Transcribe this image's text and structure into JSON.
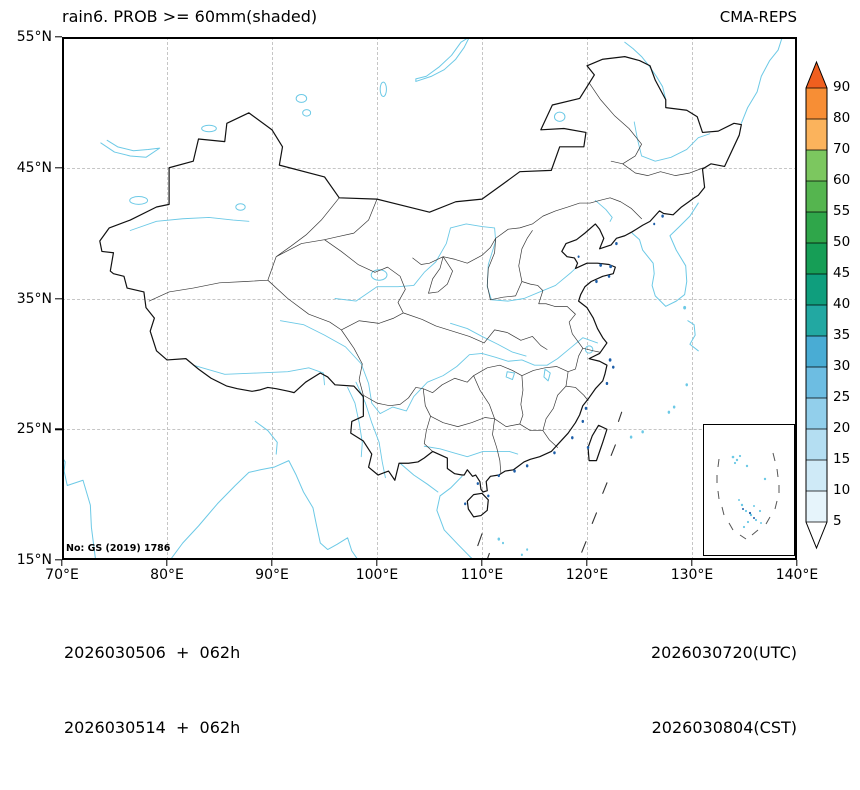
{
  "header": {
    "title": "rain6. PROB >= 60mm(shaded)",
    "model": "CMA-REPS"
  },
  "axes": {
    "lon_ticks": [
      "70°E",
      "80°E",
      "90°E",
      "100°E",
      "110°E",
      "120°E",
      "130°E",
      "140°E"
    ],
    "lat_ticks": [
      "55°N",
      "45°N",
      "35°N",
      "25°N",
      "15°N"
    ]
  },
  "colorbar": {
    "labels": [
      "90",
      "80",
      "70",
      "60",
      "55",
      "50",
      "45",
      "40",
      "35",
      "30",
      "25",
      "20",
      "15",
      "10",
      "5"
    ],
    "colors": [
      "#ef5f1f",
      "#f78e35",
      "#fbb35c",
      "#7cc75f",
      "#55b54f",
      "#2fa64a",
      "#169e56",
      "#0f9e7d",
      "#22a8a2",
      "#49acd4",
      "#6dbde2",
      "#92cfeb",
      "#b4def2",
      "#cfeaf7",
      "#e6f4fb",
      "#ffffff"
    ]
  },
  "footer": {
    "init_utc": "2026030506  +  062h",
    "init_cst": "2026030514  +  062h",
    "valid_utc": "2026030720(UTC)",
    "valid_cst": "2026030804(CST)"
  },
  "watermark": "No: GS (2019) 1786",
  "map": {
    "line_colors": {
      "border": "#111111",
      "province": "#3a3a3a",
      "water": "#6cc9e6",
      "shading_speck": "#1e5fa9",
      "grid": "#c6c6c6"
    }
  }
}
